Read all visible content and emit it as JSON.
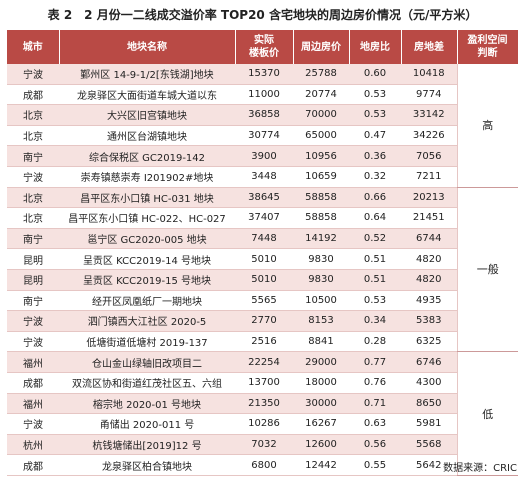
{
  "title": "表 2　2 月份一二线成交溢价率 TOP20 含宅地块的周边房价情况（元/平方米）",
  "table": {
    "headers": [
      "城市",
      "地块名称",
      "实际\n楼板价",
      "周边房价",
      "地房比",
      "房地差",
      "盈利空间\n判断"
    ],
    "groups": [
      {
        "label": "高",
        "rows": [
          [
            "宁波",
            "鄞州区 14-9-1/2[东钱湖]地块",
            "15370",
            "25788",
            "0.60",
            "10418"
          ],
          [
            "成都",
            "龙泉驿区大面街道车城大道以东",
            "11000",
            "20774",
            "0.53",
            "9774"
          ],
          [
            "北京",
            "大兴区旧宫镇地块",
            "36858",
            "70000",
            "0.53",
            "33142"
          ],
          [
            "北京",
            "通州区台湖镇地块",
            "30774",
            "65000",
            "0.47",
            "34226"
          ],
          [
            "南宁",
            "综合保税区 GC2019-142",
            "3900",
            "10956",
            "0.36",
            "7056"
          ],
          [
            "宁波",
            "崇寿镇慈崇寿 I201902#地块",
            "3448",
            "10659",
            "0.32",
            "7211"
          ]
        ]
      },
      {
        "label": "一般",
        "rows": [
          [
            "北京",
            "昌平区东小口镇 HC-031 地块",
            "38645",
            "58858",
            "0.66",
            "20213"
          ],
          [
            "北京",
            "昌平区东小口镇 HC-022、HC-027",
            "37407",
            "58858",
            "0.64",
            "21451"
          ],
          [
            "南宁",
            "邕宁区 GC2020-005 地块",
            "7448",
            "14192",
            "0.52",
            "6744"
          ],
          [
            "昆明",
            "呈贡区 KCC2019-14 号地块",
            "5010",
            "9830",
            "0.51",
            "4820"
          ],
          [
            "昆明",
            "呈贡区 KCC2019-15 号地块",
            "5010",
            "9830",
            "0.51",
            "4820"
          ],
          [
            "南宁",
            "经开区凤凰纸厂一期地块",
            "5565",
            "10500",
            "0.53",
            "4935"
          ],
          [
            "宁波",
            "泗门镇西大江社区 2020-5",
            "2770",
            "8153",
            "0.34",
            "5383"
          ],
          [
            "宁波",
            "低塘街道低塘村 2019-137",
            "2516",
            "8841",
            "0.28",
            "6325"
          ]
        ]
      },
      {
        "label": "低",
        "rows": [
          [
            "福州",
            "仓山金山绿轴旧改项目二",
            "22254",
            "29000",
            "0.77",
            "6746"
          ],
          [
            "成都",
            "双流区协和街道红茂社区五、六组",
            "13700",
            "18000",
            "0.76",
            "4300"
          ],
          [
            "福州",
            "榕宗地 2020-01 号地块",
            "21350",
            "30000",
            "0.71",
            "8650"
          ],
          [
            "宁波",
            "甬储出 2020-011 号",
            "10286",
            "16267",
            "0.63",
            "5981"
          ],
          [
            "杭州",
            "杭钱塘储出[2019]12 号",
            "7032",
            "12600",
            "0.56",
            "5568"
          ],
          [
            "成都",
            "龙泉驿区柏合镇地块",
            "6800",
            "12442",
            "0.55",
            "5642"
          ]
        ]
      }
    ]
  },
  "source": "数据来源：CRIC"
}
